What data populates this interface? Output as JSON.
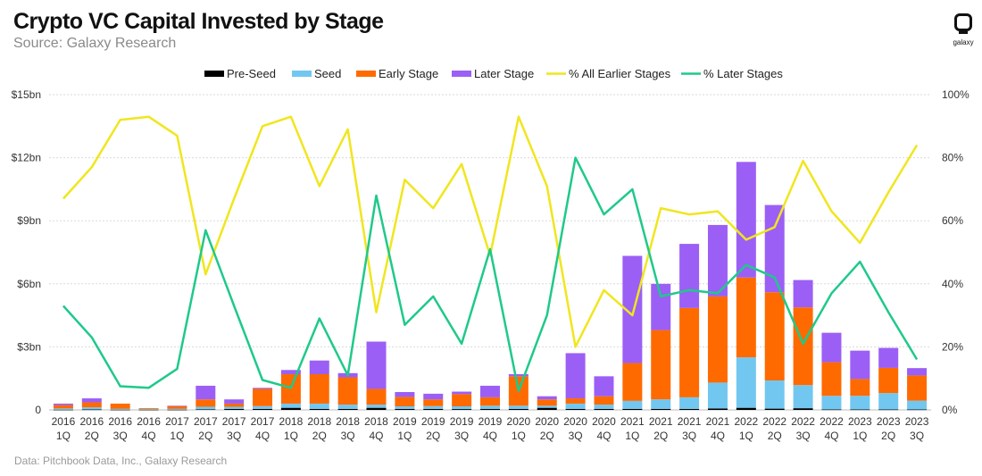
{
  "header": {
    "title": "Crypto VC Capital Invested by Stage",
    "subtitle": "Source: Galaxy Research",
    "logo_text": "galaxy"
  },
  "footer": {
    "note": "Data: Pitchbook Data, Inc., Galaxy Research"
  },
  "colors": {
    "pre_seed": "#000000",
    "seed": "#72c7f0",
    "early": "#ff6a00",
    "later": "#9b5ff5",
    "pct_earlier": "#f0e61e",
    "pct_later": "#1fc98a",
    "grid": "#d9d9d9"
  },
  "chart_data": {
    "type": "bar",
    "stacked": true,
    "title": "Crypto VC Capital Invested by Stage",
    "categories": [
      [
        "2016",
        "1Q"
      ],
      [
        "2016",
        "2Q"
      ],
      [
        "2016",
        "3Q"
      ],
      [
        "2016",
        "4Q"
      ],
      [
        "2017",
        "1Q"
      ],
      [
        "2017",
        "2Q"
      ],
      [
        "2017",
        "3Q"
      ],
      [
        "2017",
        "4Q"
      ],
      [
        "2018",
        "1Q"
      ],
      [
        "2018",
        "2Q"
      ],
      [
        "2018",
        "3Q"
      ],
      [
        "2018",
        "4Q"
      ],
      [
        "2019",
        "1Q"
      ],
      [
        "2019",
        "2Q"
      ],
      [
        "2019",
        "3Q"
      ],
      [
        "2019",
        "4Q"
      ],
      [
        "2020",
        "1Q"
      ],
      [
        "2020",
        "2Q"
      ],
      [
        "2020",
        "3Q"
      ],
      [
        "2020",
        "4Q"
      ],
      [
        "2021",
        "1Q"
      ],
      [
        "2021",
        "2Q"
      ],
      [
        "2021",
        "3Q"
      ],
      [
        "2021",
        "4Q"
      ],
      [
        "2022",
        "1Q"
      ],
      [
        "2022",
        "2Q"
      ],
      [
        "2022",
        "3Q"
      ],
      [
        "2022",
        "4Q"
      ],
      [
        "2023",
        "1Q"
      ],
      [
        "2023",
        "2Q"
      ],
      [
        "2023",
        "3Q"
      ]
    ],
    "y_left": {
      "ylim": [
        0,
        15
      ],
      "ticks": [
        0,
        3,
        6,
        9,
        12,
        15
      ],
      "tick_labels": [
        "0",
        "$3bn",
        "$6bn",
        "$9bn",
        "$12bn",
        "$15bn"
      ]
    },
    "y_right": {
      "ylim": [
        0,
        100
      ],
      "ticks": [
        0,
        20,
        40,
        60,
        80,
        100
      ],
      "tick_labels": [
        "0%",
        "20%",
        "40%",
        "60%",
        "80%",
        "100%"
      ]
    },
    "bar_series": [
      {
        "key": "pre_seed",
        "name": "Pre-Seed",
        "values": [
          0.01,
          0.02,
          0.01,
          0.01,
          0.01,
          0.03,
          0.05,
          0.05,
          0.1,
          0.05,
          0.05,
          0.1,
          0.05,
          0.05,
          0.04,
          0.05,
          0.05,
          0.1,
          0.05,
          0.05,
          0.05,
          0.05,
          0.05,
          0.07,
          0.1,
          0.06,
          0.08,
          0.02,
          0.02,
          0.02,
          0.02
        ]
      },
      {
        "key": "seed",
        "name": "Seed",
        "values": [
          0.06,
          0.1,
          0.04,
          0.03,
          0.04,
          0.12,
          0.1,
          0.13,
          0.2,
          0.25,
          0.2,
          0.15,
          0.12,
          0.13,
          0.13,
          0.15,
          0.15,
          0.1,
          0.25,
          0.2,
          0.38,
          0.45,
          0.55,
          1.23,
          2.4,
          1.34,
          1.1,
          0.65,
          0.65,
          0.78,
          0.42
        ]
      },
      {
        "key": "early",
        "name": "Early Stage",
        "values": [
          0.16,
          0.24,
          0.25,
          0.04,
          0.13,
          0.35,
          0.15,
          0.82,
          1.4,
          1.4,
          1.3,
          0.75,
          0.45,
          0.32,
          0.58,
          0.4,
          1.4,
          0.3,
          0.25,
          0.4,
          1.8,
          3.3,
          4.25,
          4.1,
          3.8,
          4.2,
          3.7,
          1.6,
          0.8,
          1.2,
          1.2
        ]
      },
      {
        "key": "later",
        "name": "Later Stage",
        "values": [
          0.07,
          0.19,
          0.0,
          0.0,
          0.02,
          0.65,
          0.2,
          0.05,
          0.2,
          0.65,
          0.2,
          2.25,
          0.23,
          0.27,
          0.12,
          0.55,
          0.1,
          0.15,
          2.15,
          0.95,
          5.1,
          2.2,
          3.05,
          3.4,
          5.5,
          4.15,
          1.3,
          1.4,
          1.35,
          0.95,
          0.35
        ]
      }
    ],
    "line_series": [
      {
        "key": "pct_earlier",
        "name": "% All Earlier Stages",
        "axis": "right",
        "values": [
          67,
          77,
          92,
          93,
          87,
          43,
          67,
          90,
          93,
          71,
          89,
          31,
          73,
          64,
          78,
          49,
          93,
          71,
          20,
          38,
          30,
          64,
          62,
          63,
          54,
          58,
          79,
          63,
          53,
          69,
          84
        ]
      },
      {
        "key": "pct_later",
        "name": "% Later Stages",
        "axis": "right",
        "values": [
          33,
          23,
          7.5,
          7,
          13,
          57,
          33,
          9.5,
          7,
          29,
          11,
          68,
          27,
          36,
          21,
          51,
          6,
          30,
          80,
          62,
          70,
          36,
          38,
          37,
          46,
          42,
          21,
          37,
          47,
          31,
          16
        ]
      }
    ],
    "legend": [
      "Pre-Seed",
      "Seed",
      "Early Stage",
      "Later Stage",
      "% All Earlier Stages",
      "% Later Stages"
    ],
    "legend_position": "top"
  }
}
